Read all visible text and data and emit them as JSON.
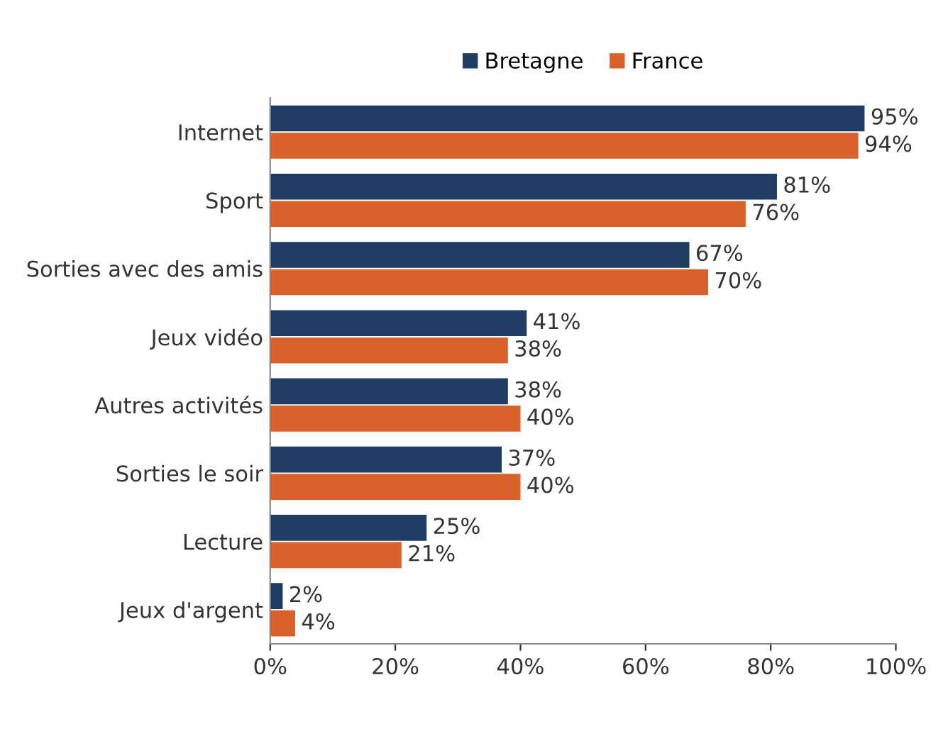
{
  "chart_data": {
    "type": "bar",
    "orientation": "horizontal",
    "categories": [
      "Internet",
      "Sport",
      "Sorties avec des amis",
      "Jeux vidéo",
      "Autres activités",
      "Sorties le soir",
      "Lecture",
      "Jeux d'argent"
    ],
    "series": [
      {
        "name": "Bretagne",
        "color": "#1f3d63",
        "values": [
          95,
          81,
          67,
          41,
          38,
          37,
          25,
          2
        ],
        "value_labels": [
          "95%",
          "81%",
          "67%",
          "41%",
          "38%",
          "37%",
          "25%",
          "2%"
        ]
      },
      {
        "name": "France",
        "color": "#d9622b",
        "values": [
          94,
          76,
          70,
          38,
          40,
          40,
          21,
          4
        ],
        "value_labels": [
          "94%",
          "76%",
          "70%",
          "38%",
          "40%",
          "40%",
          "21%",
          "4%"
        ]
      }
    ],
    "xlim": [
      0,
      100
    ],
    "xticks": [
      {
        "value": 0,
        "label": "0%"
      },
      {
        "value": 20,
        "label": "20%"
      },
      {
        "value": 40,
        "label": "40%"
      },
      {
        "value": 60,
        "label": "60%"
      },
      {
        "value": 80,
        "label": "80%"
      },
      {
        "value": 100,
        "label": "100%"
      }
    ],
    "grid": false,
    "legend": "top"
  }
}
